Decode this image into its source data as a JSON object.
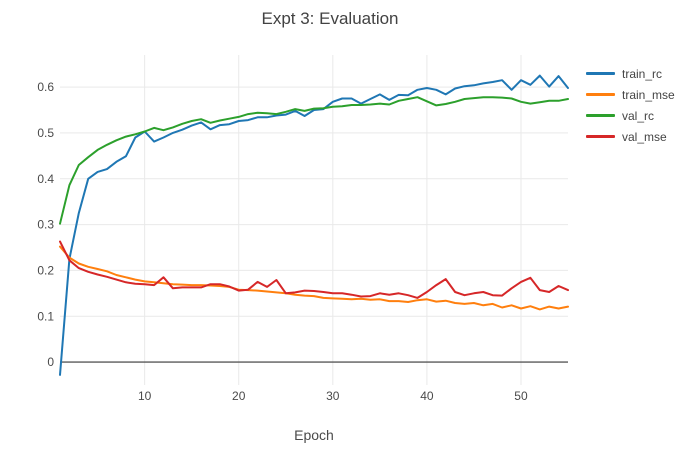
{
  "chart_data": {
    "type": "line",
    "title": "Expt 3: Evaluation",
    "xlabel": "Epoch",
    "ylabel": "",
    "xlim": [
      1,
      55
    ],
    "ylim": [
      -0.05,
      0.67
    ],
    "grid": true,
    "legend_position": "right-outside",
    "x_tick_values": [
      10,
      20,
      30,
      40,
      50
    ],
    "x_tick_labels": [
      "10",
      "20",
      "30",
      "40",
      "50"
    ],
    "y_tick_values": [
      0,
      0.1,
      0.2,
      0.3,
      0.4,
      0.5,
      0.6
    ],
    "y_tick_labels": [
      "0",
      "0.1",
      "0.2",
      "0.3",
      "0.4",
      "0.5",
      "0.6"
    ],
    "zeroline_value": 0,
    "x": [
      1,
      2,
      3,
      4,
      5,
      6,
      7,
      8,
      9,
      10,
      11,
      12,
      13,
      14,
      15,
      16,
      17,
      18,
      19,
      20,
      21,
      22,
      23,
      24,
      25,
      26,
      27,
      28,
      29,
      30,
      31,
      32,
      33,
      34,
      35,
      36,
      37,
      38,
      39,
      40,
      41,
      42,
      43,
      44,
      45,
      46,
      47,
      48,
      49,
      50,
      51,
      52,
      53,
      54,
      55
    ],
    "series": [
      {
        "name": "train_rc",
        "color": "#1f77b4",
        "values": [
          -0.028,
          0.225,
          0.325,
          0.4,
          0.415,
          0.421,
          0.437,
          0.449,
          0.49,
          0.503,
          0.481,
          0.49,
          0.5,
          0.507,
          0.516,
          0.523,
          0.508,
          0.517,
          0.519,
          0.526,
          0.528,
          0.534,
          0.534,
          0.538,
          0.54,
          0.548,
          0.537,
          0.55,
          0.552,
          0.568,
          0.575,
          0.575,
          0.564,
          0.574,
          0.584,
          0.572,
          0.583,
          0.582,
          0.594,
          0.598,
          0.594,
          0.584,
          0.597,
          0.602,
          0.604,
          0.608,
          0.611,
          0.615,
          0.594,
          0.615,
          0.605,
          0.625,
          0.601,
          0.624,
          0.598
        ]
      },
      {
        "name": "train_mse",
        "color": "#ff7f0e",
        "values": [
          0.252,
          0.228,
          0.215,
          0.208,
          0.203,
          0.198,
          0.19,
          0.185,
          0.18,
          0.176,
          0.174,
          0.172,
          0.17,
          0.169,
          0.168,
          0.168,
          0.167,
          0.166,
          0.164,
          0.158,
          0.157,
          0.156,
          0.154,
          0.152,
          0.15,
          0.147,
          0.145,
          0.144,
          0.14,
          0.139,
          0.138,
          0.137,
          0.138,
          0.136,
          0.137,
          0.133,
          0.133,
          0.131,
          0.135,
          0.137,
          0.132,
          0.134,
          0.129,
          0.127,
          0.129,
          0.124,
          0.127,
          0.119,
          0.124,
          0.117,
          0.122,
          0.115,
          0.121,
          0.117,
          0.121
        ]
      },
      {
        "name": "val_rc",
        "color": "#2ca02c",
        "values": [
          0.302,
          0.386,
          0.43,
          0.447,
          0.463,
          0.474,
          0.484,
          0.492,
          0.497,
          0.503,
          0.511,
          0.506,
          0.512,
          0.52,
          0.526,
          0.53,
          0.522,
          0.527,
          0.531,
          0.535,
          0.541,
          0.544,
          0.543,
          0.541,
          0.546,
          0.552,
          0.548,
          0.553,
          0.554,
          0.557,
          0.558,
          0.561,
          0.561,
          0.562,
          0.564,
          0.562,
          0.57,
          0.574,
          0.578,
          0.569,
          0.56,
          0.563,
          0.568,
          0.574,
          0.576,
          0.578,
          0.578,
          0.577,
          0.575,
          0.568,
          0.564,
          0.567,
          0.57,
          0.57,
          0.574
        ]
      },
      {
        "name": "val_mse",
        "color": "#d62728",
        "values": [
          0.263,
          0.222,
          0.205,
          0.197,
          0.191,
          0.186,
          0.18,
          0.174,
          0.171,
          0.17,
          0.168,
          0.185,
          0.161,
          0.163,
          0.163,
          0.163,
          0.17,
          0.17,
          0.165,
          0.156,
          0.158,
          0.175,
          0.164,
          0.179,
          0.15,
          0.152,
          0.156,
          0.155,
          0.153,
          0.15,
          0.15,
          0.147,
          0.143,
          0.144,
          0.15,
          0.147,
          0.15,
          0.146,
          0.14,
          0.153,
          0.168,
          0.181,
          0.153,
          0.146,
          0.15,
          0.153,
          0.146,
          0.145,
          0.161,
          0.175,
          0.184,
          0.157,
          0.153,
          0.166,
          0.157
        ]
      }
    ]
  },
  "style_colors": {
    "grid": "#e9e9e9",
    "zeroline": "#5a5a5a",
    "text": "#444444"
  }
}
